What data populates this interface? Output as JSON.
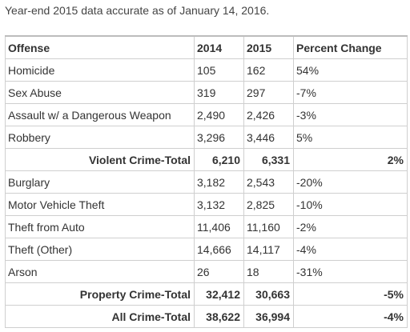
{
  "caption": "Year-end 2015 data accurate as of January 14, 2016.",
  "headers": [
    "Offense",
    "2014",
    "2015",
    "Percent Change"
  ],
  "violent_rows": [
    {
      "offense": "Homicide",
      "y2014": "105",
      "y2015": "162",
      "change": "54%"
    },
    {
      "offense": "Sex Abuse",
      "y2014": "319",
      "y2015": "297",
      "change": "-7%"
    },
    {
      "offense": "Assault w/ a Dangerous Weapon",
      "y2014": "2,490",
      "y2015": "2,426",
      "change": "-3%"
    },
    {
      "offense": "Robbery",
      "y2014": "3,296",
      "y2015": "3,446",
      "change": "5%"
    }
  ],
  "violent_total": {
    "label": "Violent Crime-Total",
    "y2014": "6,210",
    "y2015": "6,331",
    "change": "2%"
  },
  "property_rows": [
    {
      "offense": "Burglary",
      "y2014": "3,182",
      "y2015": "2,543",
      "change": "-20%"
    },
    {
      "offense": "Motor Vehicle Theft",
      "y2014": "3,132",
      "y2015": "2,825",
      "change": "-10%"
    },
    {
      "offense": "Theft from Auto",
      "y2014": "11,406",
      "y2015": "11,160",
      "change": "-2%"
    },
    {
      "offense": "Theft (Other)",
      "y2014": "14,666",
      "y2015": "14,117",
      "change": "-4%"
    },
    {
      "offense": "Arson",
      "y2014": "26",
      "y2015": "18",
      "change": "-31%"
    }
  ],
  "property_total": {
    "label": "Property Crime-Total",
    "y2014": "32,412",
    "y2015": "30,663",
    "change": "-5%"
  },
  "all_total": {
    "label": "All Crime-Total",
    "y2014": "38,622",
    "y2015": "36,994",
    "change": "-4%"
  }
}
